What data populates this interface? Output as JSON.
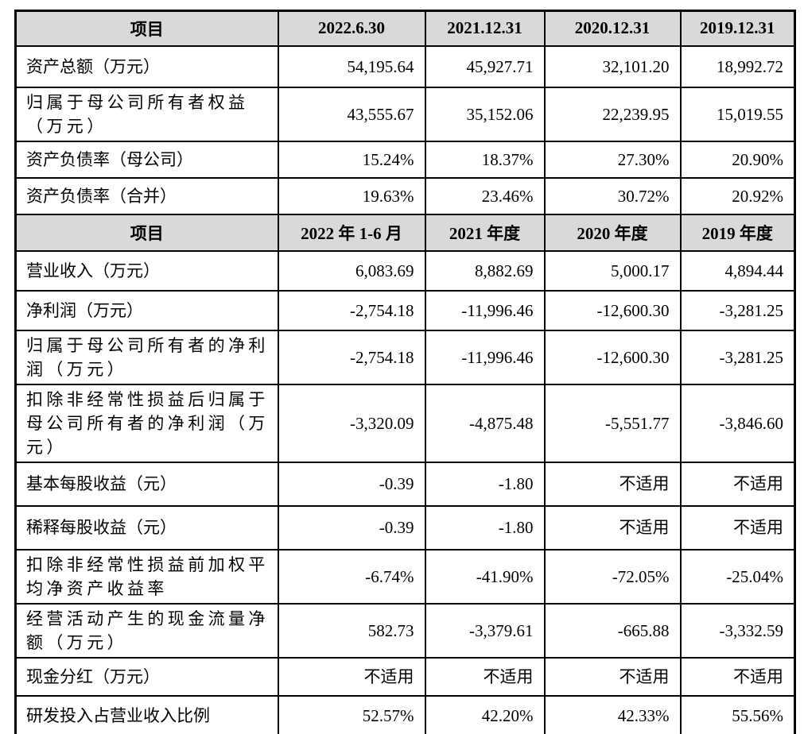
{
  "colors": {
    "header_bg": "#d9d9d9",
    "border": "#000000",
    "text": "#000000",
    "page_bg": "#ffffff"
  },
  "table": {
    "section1": {
      "header": [
        "项目",
        "2022.6.30",
        "2021.12.31",
        "2020.12.31",
        "2019.12.31"
      ],
      "rows": [
        {
          "label": "资产总额（万元）",
          "values": [
            "54,195.64",
            "45,927.71",
            "32,101.20",
            "18,992.72"
          ]
        },
        {
          "label": "归属于母公司所有者权益（万元）",
          "values": [
            "43,555.67",
            "35,152.06",
            "22,239.95",
            "15,019.55"
          ]
        },
        {
          "label": "资产负债率（母公司）",
          "values": [
            "15.24%",
            "18.37%",
            "27.30%",
            "20.90%"
          ]
        },
        {
          "label": "资产负债率（合并）",
          "values": [
            "19.63%",
            "23.46%",
            "30.72%",
            "20.92%"
          ]
        }
      ]
    },
    "section2": {
      "header": [
        "项目",
        "2022 年 1-6 月",
        "2021 年度",
        "2020 年度",
        "2019 年度"
      ],
      "rows": [
        {
          "label": "营业收入（万元）",
          "values": [
            "6,083.69",
            "8,882.69",
            "5,000.17",
            "4,894.44"
          ]
        },
        {
          "label": "净利润（万元）",
          "values": [
            "-2,754.18",
            "-11,996.46",
            "-12,600.30",
            "-3,281.25"
          ]
        },
        {
          "label": "归属于母公司所有者的净利润（万元）",
          "values": [
            "-2,754.18",
            "-11,996.46",
            "-12,600.30",
            "-3,281.25"
          ]
        },
        {
          "label": "扣除非经常性损益后归属于母公司所有者的净利润（万元）",
          "values": [
            "-3,320.09",
            "-4,875.48",
            "-5,551.77",
            "-3,846.60"
          ]
        },
        {
          "label": "基本每股收益（元）",
          "values": [
            "-0.39",
            "-1.80",
            "不适用",
            "不适用"
          ]
        },
        {
          "label": "稀释每股收益（元）",
          "values": [
            "-0.39",
            "-1.80",
            "不适用",
            "不适用"
          ]
        },
        {
          "label": "扣除非经常性损益前加权平均净资产收益率",
          "values": [
            "-6.74%",
            "-41.90%",
            "-72.05%",
            "-25.04%"
          ]
        },
        {
          "label": "经营活动产生的现金流量净额（万元）",
          "values": [
            "582.73",
            "-3,379.61",
            "-665.88",
            "-3,332.59"
          ]
        },
        {
          "label": "现金分红（万元）",
          "values": [
            "不适用",
            "不适用",
            "不适用",
            "不适用"
          ]
        },
        {
          "label": "研发投入占营业收入比例",
          "values": [
            "52.57%",
            "42.20%",
            "42.33%",
            "55.56%"
          ]
        }
      ]
    }
  }
}
